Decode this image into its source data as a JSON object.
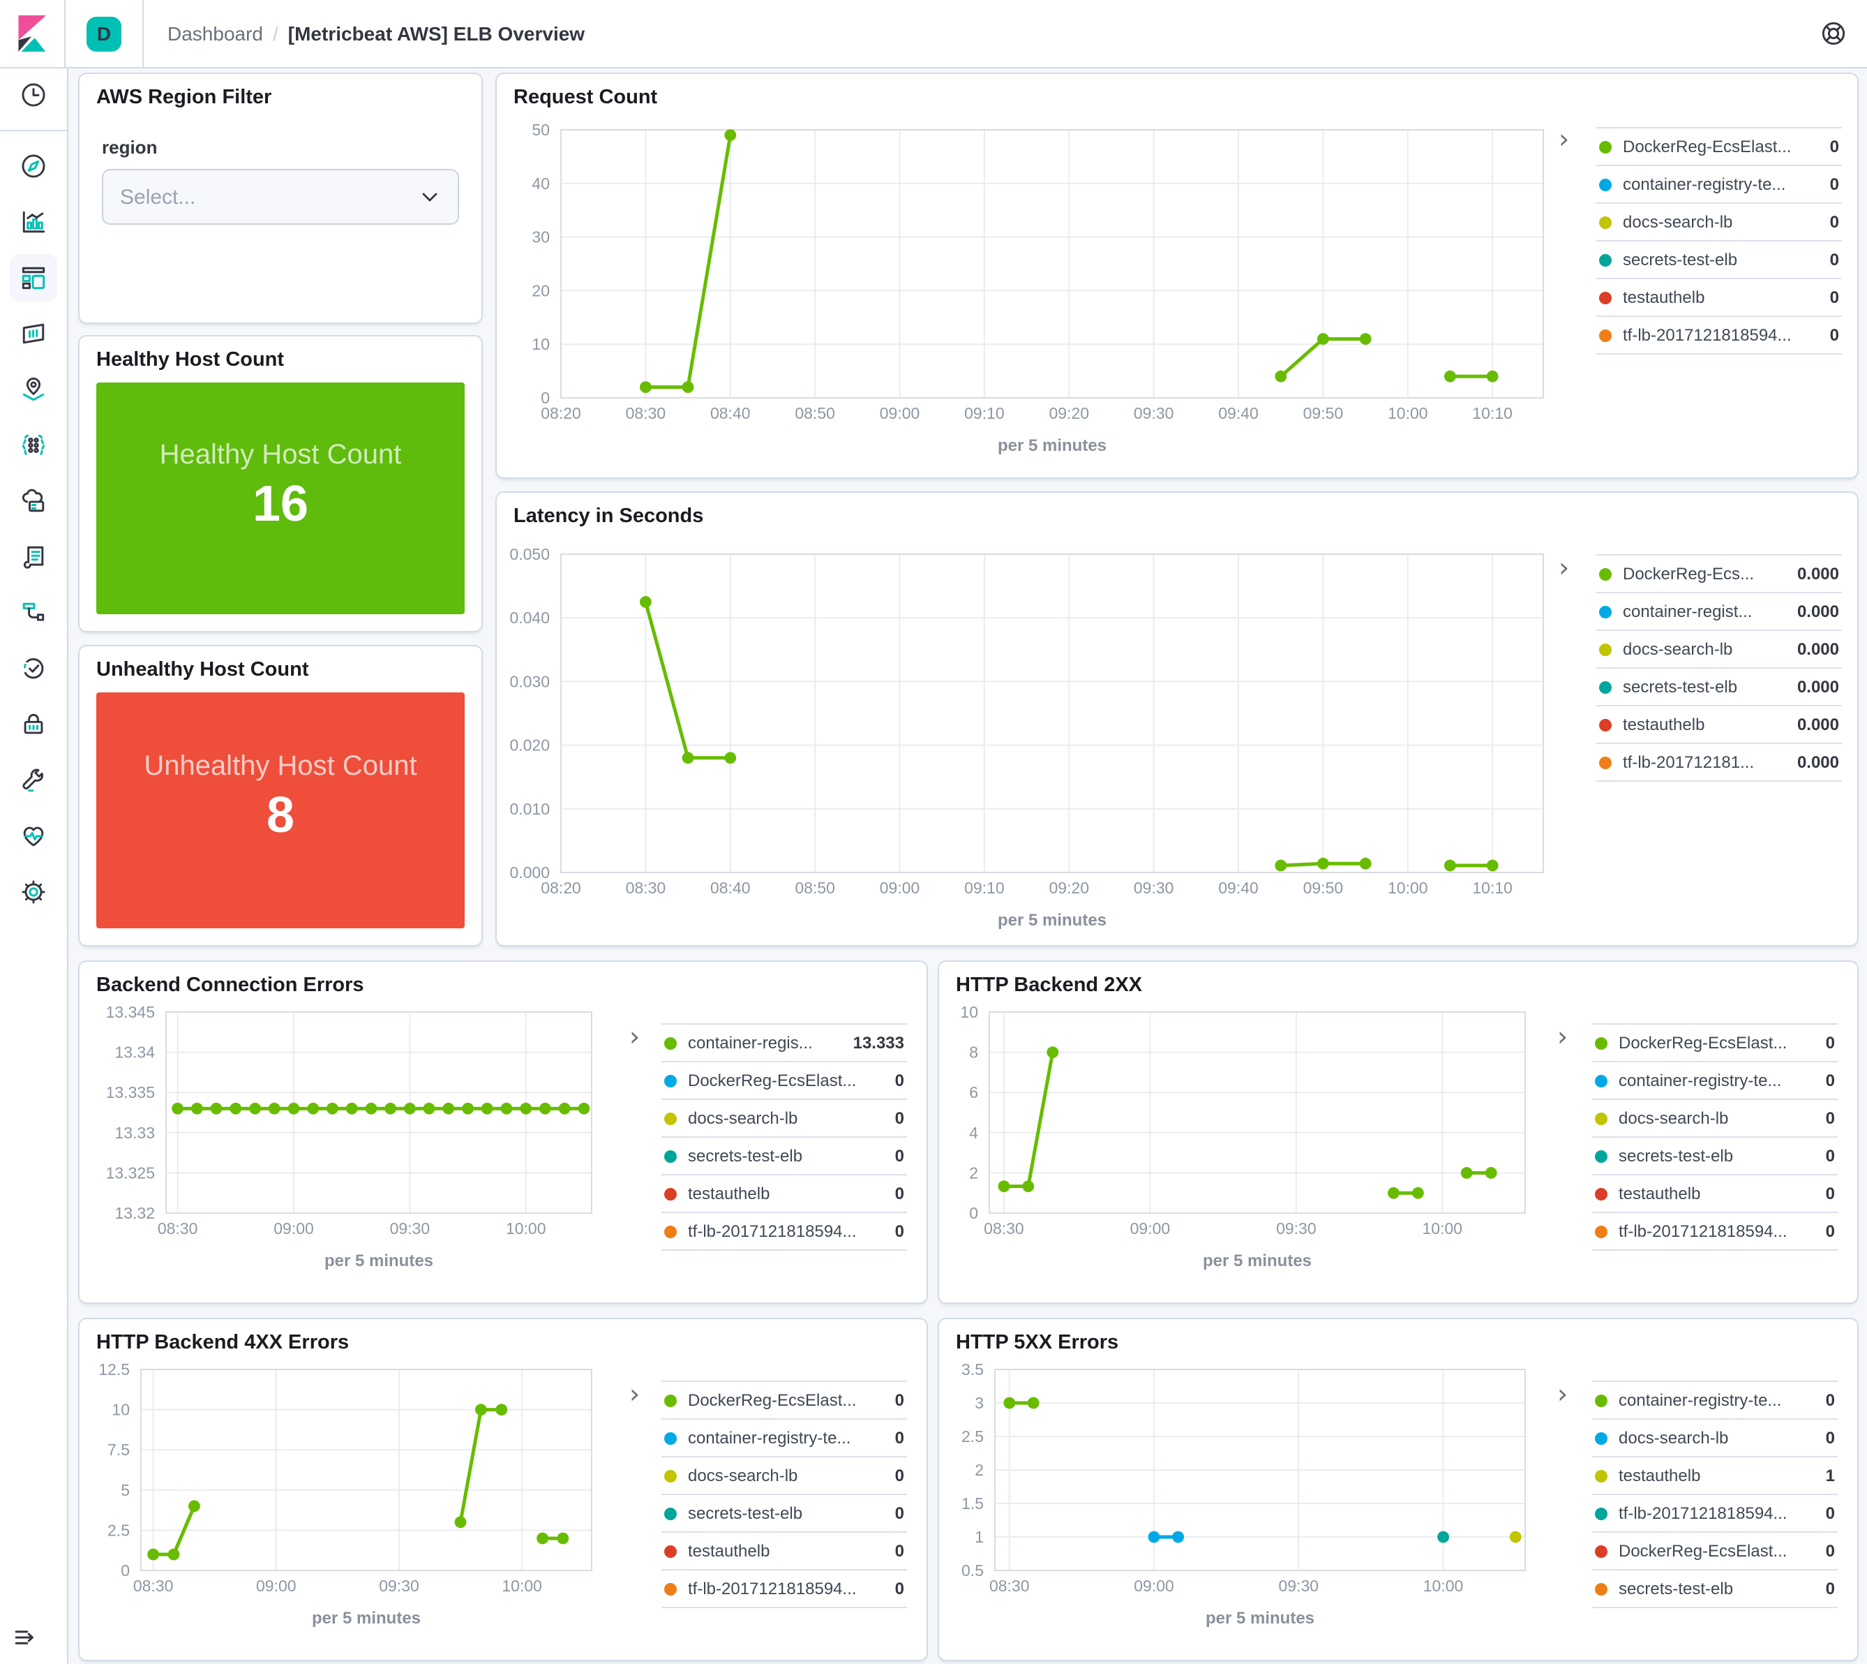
{
  "app": {
    "name": "Kibana",
    "space_badge": "D",
    "breadcrumb": {
      "section": "Dashboard",
      "separator": "/",
      "page": "[Metricbeat AWS] ELB Overview"
    }
  },
  "sidebar": {
    "icons": [
      "recent",
      "discover",
      "visualize",
      "dashboard",
      "canvas",
      "maps",
      "machine-learning",
      "infrastructure",
      "logs",
      "apm",
      "uptime",
      "siem",
      "dev-tools",
      "stack-monitoring",
      "management"
    ],
    "selected": "dashboard",
    "collapse_icon": "dock-navigation-icon",
    "help_icon": "help-life-ring-icon"
  },
  "filter_panel": {
    "title": "AWS Region Filter",
    "field_label": "region",
    "select_placeholder": "Select...",
    "chevron_icon": "chevron-down-icon"
  },
  "metrics": [
    {
      "title": "Healthy Host Count",
      "label": "Healthy Host Count",
      "value": "16",
      "color": "#5FBB0C"
    },
    {
      "title": "Unhealthy Host Count",
      "label": "Unhealthy Host Count",
      "value": "8",
      "color": "#EE4E3A"
    }
  ],
  "palette": {
    "green": "#68BC00",
    "blue": "#00A9E5",
    "olive": "#C1C400",
    "teal": "#00A69B",
    "red": "#DB3E26",
    "orange": "#F07E16"
  },
  "chart_data": [
    {
      "key": "request_count",
      "type": "line",
      "title": "Request Count",
      "xlabel": "per 5 minutes",
      "x_domain": [
        500,
        616
      ],
      "x_ticks": [
        {
          "t": 500,
          "label": "08:20"
        },
        {
          "t": 510,
          "label": "08:30"
        },
        {
          "t": 520,
          "label": "08:40"
        },
        {
          "t": 530,
          "label": "08:50"
        },
        {
          "t": 540,
          "label": "09:00"
        },
        {
          "t": 550,
          "label": "09:10"
        },
        {
          "t": 560,
          "label": "09:20"
        },
        {
          "t": 570,
          "label": "09:30"
        },
        {
          "t": 580,
          "label": "09:40"
        },
        {
          "t": 590,
          "label": "09:50"
        },
        {
          "t": 600,
          "label": "10:00"
        },
        {
          "t": 610,
          "label": "10:10"
        }
      ],
      "y_domain": [
        0,
        50
      ],
      "y_ticks": [
        {
          "v": 0,
          "label": "0"
        },
        {
          "v": 10,
          "label": "10"
        },
        {
          "v": 20,
          "label": "20"
        },
        {
          "v": 30,
          "label": "30"
        },
        {
          "v": 40,
          "label": "40"
        },
        {
          "v": 50,
          "label": "50"
        }
      ],
      "series": [
        {
          "name": "DockerReg-EcsElast...",
          "color": "green",
          "segments": [
            [
              [
                510,
                2
              ],
              [
                515,
                2
              ],
              [
                520,
                49
              ]
            ],
            [
              [
                585,
                4
              ],
              [
                590,
                11
              ],
              [
                595,
                11
              ]
            ],
            [
              [
                605,
                4
              ],
              [
                610,
                4
              ]
            ]
          ]
        }
      ],
      "legend": [
        {
          "label": "DockerReg-EcsElast...",
          "value": "0",
          "color": "green"
        },
        {
          "label": "container-registry-te...",
          "value": "0",
          "color": "blue"
        },
        {
          "label": "docs-search-lb",
          "value": "0",
          "color": "olive"
        },
        {
          "label": "secrets-test-elb",
          "value": "0",
          "color": "teal"
        },
        {
          "label": "testauthelb",
          "value": "0",
          "color": "red"
        },
        {
          "label": "tf-lb-2017121818594...",
          "value": "0",
          "color": "orange"
        }
      ]
    },
    {
      "key": "latency",
      "type": "line",
      "title": "Latency in Seconds",
      "xlabel": "per 5 minutes",
      "x_domain": [
        500,
        616
      ],
      "x_ticks": [
        {
          "t": 500,
          "label": "08:20"
        },
        {
          "t": 510,
          "label": "08:30"
        },
        {
          "t": 520,
          "label": "08:40"
        },
        {
          "t": 530,
          "label": "08:50"
        },
        {
          "t": 540,
          "label": "09:00"
        },
        {
          "t": 550,
          "label": "09:10"
        },
        {
          "t": 560,
          "label": "09:20"
        },
        {
          "t": 570,
          "label": "09:30"
        },
        {
          "t": 580,
          "label": "09:40"
        },
        {
          "t": 590,
          "label": "09:50"
        },
        {
          "t": 600,
          "label": "10:00"
        },
        {
          "t": 610,
          "label": "10:10"
        }
      ],
      "y_domain": [
        0,
        0.05
      ],
      "y_ticks": [
        {
          "v": 0,
          "label": "0.000"
        },
        {
          "v": 0.01,
          "label": "0.010"
        },
        {
          "v": 0.02,
          "label": "0.020"
        },
        {
          "v": 0.03,
          "label": "0.030"
        },
        {
          "v": 0.04,
          "label": "0.040"
        },
        {
          "v": 0.05,
          "label": "0.050"
        }
      ],
      "series": [
        {
          "name": "DockerReg-Ecs...",
          "color": "green",
          "segments": [
            [
              [
                510,
                0.0425
              ],
              [
                515,
                0.018
              ],
              [
                520,
                0.018
              ]
            ],
            [
              [
                585,
                0.0011
              ],
              [
                590,
                0.0014
              ],
              [
                595,
                0.0014
              ]
            ],
            [
              [
                605,
                0.0011
              ],
              [
                610,
                0.0011
              ]
            ]
          ]
        }
      ],
      "legend": [
        {
          "label": "DockerReg-Ecs...",
          "value": "0.000",
          "color": "green"
        },
        {
          "label": "container-regist...",
          "value": "0.000",
          "color": "blue"
        },
        {
          "label": "docs-search-lb",
          "value": "0.000",
          "color": "olive"
        },
        {
          "label": "secrets-test-elb",
          "value": "0.000",
          "color": "teal"
        },
        {
          "label": "testauthelb",
          "value": "0.000",
          "color": "red"
        },
        {
          "label": "tf-lb-201712181...",
          "value": "0.000",
          "color": "orange"
        }
      ]
    },
    {
      "key": "backend_connection_errors",
      "type": "line",
      "title": "Backend Connection Errors",
      "xlabel": "per 5 minutes",
      "x_domain": [
        507,
        617
      ],
      "x_ticks": [
        {
          "t": 510,
          "label": "08:30"
        },
        {
          "t": 540,
          "label": "09:00"
        },
        {
          "t": 570,
          "label": "09:30"
        },
        {
          "t": 600,
          "label": "10:00"
        }
      ],
      "y_domain": [
        13.32,
        13.345
      ],
      "y_ticks": [
        {
          "v": 13.32,
          "label": "13.32"
        },
        {
          "v": 13.325,
          "label": "13.325"
        },
        {
          "v": 13.33,
          "label": "13.33"
        },
        {
          "v": 13.335,
          "label": "13.335"
        },
        {
          "v": 13.34,
          "label": "13.34"
        },
        {
          "v": 13.345,
          "label": "13.345"
        }
      ],
      "series": [
        {
          "name": "container-regis...",
          "color": "green",
          "segments": [
            [
              [
                510,
                13.333
              ],
              [
                515,
                13.333
              ],
              [
                520,
                13.333
              ],
              [
                525,
                13.333
              ],
              [
                530,
                13.333
              ],
              [
                535,
                13.333
              ],
              [
                540,
                13.333
              ],
              [
                545,
                13.333
              ],
              [
                550,
                13.333
              ],
              [
                555,
                13.333
              ],
              [
                560,
                13.333
              ],
              [
                565,
                13.333
              ],
              [
                570,
                13.333
              ],
              [
                575,
                13.333
              ],
              [
                580,
                13.333
              ],
              [
                585,
                13.333
              ],
              [
                590,
                13.333
              ],
              [
                595,
                13.333
              ],
              [
                600,
                13.333
              ],
              [
                605,
                13.333
              ],
              [
                610,
                13.333
              ],
              [
                615,
                13.333
              ]
            ]
          ]
        }
      ],
      "legend": [
        {
          "label": "container-regis...",
          "value": "13.333",
          "color": "green"
        },
        {
          "label": "DockerReg-EcsElast...",
          "value": "0",
          "color": "blue"
        },
        {
          "label": "docs-search-lb",
          "value": "0",
          "color": "olive"
        },
        {
          "label": "secrets-test-elb",
          "value": "0",
          "color": "teal"
        },
        {
          "label": "testauthelb",
          "value": "0",
          "color": "red"
        },
        {
          "label": "tf-lb-2017121818594...",
          "value": "0",
          "color": "orange"
        }
      ]
    },
    {
      "key": "http_backend_2xx",
      "type": "line",
      "title": "HTTP Backend 2XX",
      "xlabel": "per 5 minutes",
      "x_domain": [
        507,
        617
      ],
      "x_ticks": [
        {
          "t": 510,
          "label": "08:30"
        },
        {
          "t": 540,
          "label": "09:00"
        },
        {
          "t": 570,
          "label": "09:30"
        },
        {
          "t": 600,
          "label": "10:00"
        }
      ],
      "y_domain": [
        0,
        10
      ],
      "y_ticks": [
        {
          "v": 0,
          "label": "0"
        },
        {
          "v": 2,
          "label": "2"
        },
        {
          "v": 4,
          "label": "4"
        },
        {
          "v": 6,
          "label": "6"
        },
        {
          "v": 8,
          "label": "8"
        },
        {
          "v": 10,
          "label": "10"
        }
      ],
      "series": [
        {
          "name": "DockerReg-EcsElast...",
          "color": "green",
          "segments": [
            [
              [
                510,
                1.33
              ],
              [
                515,
                1.33
              ],
              [
                520,
                8
              ]
            ],
            [
              [
                590,
                1
              ],
              [
                595,
                1
              ]
            ],
            [
              [
                605,
                2
              ],
              [
                610,
                2
              ]
            ]
          ]
        }
      ],
      "legend": [
        {
          "label": "DockerReg-EcsElast...",
          "value": "0",
          "color": "green"
        },
        {
          "label": "container-registry-te...",
          "value": "0",
          "color": "blue"
        },
        {
          "label": "docs-search-lb",
          "value": "0",
          "color": "olive"
        },
        {
          "label": "secrets-test-elb",
          "value": "0",
          "color": "teal"
        },
        {
          "label": "testauthelb",
          "value": "0",
          "color": "red"
        },
        {
          "label": "tf-lb-2017121818594...",
          "value": "0",
          "color": "orange"
        }
      ]
    },
    {
      "key": "http_backend_4xx",
      "type": "line",
      "title": "HTTP Backend 4XX Errors",
      "xlabel": "per 5 minutes",
      "x_domain": [
        507,
        617
      ],
      "x_ticks": [
        {
          "t": 510,
          "label": "08:30"
        },
        {
          "t": 540,
          "label": "09:00"
        },
        {
          "t": 570,
          "label": "09:30"
        },
        {
          "t": 600,
          "label": "10:00"
        }
      ],
      "y_domain": [
        0,
        12.5
      ],
      "y_ticks": [
        {
          "v": 0,
          "label": "0"
        },
        {
          "v": 2.5,
          "label": "2.5"
        },
        {
          "v": 5,
          "label": "5"
        },
        {
          "v": 7.5,
          "label": "7.5"
        },
        {
          "v": 10,
          "label": "10"
        },
        {
          "v": 12.5,
          "label": "12.5"
        }
      ],
      "series": [
        {
          "name": "DockerReg-EcsElast...",
          "color": "green",
          "segments": [
            [
              [
                510,
                1
              ],
              [
                515,
                1
              ],
              [
                520,
                4
              ]
            ],
            [
              [
                585,
                3
              ],
              [
                590,
                10
              ],
              [
                595,
                10
              ]
            ],
            [
              [
                605,
                2
              ],
              [
                610,
                2
              ]
            ]
          ]
        }
      ],
      "legend": [
        {
          "label": "DockerReg-EcsElast...",
          "value": "0",
          "color": "green"
        },
        {
          "label": "container-registry-te...",
          "value": "0",
          "color": "blue"
        },
        {
          "label": "docs-search-lb",
          "value": "0",
          "color": "olive"
        },
        {
          "label": "secrets-test-elb",
          "value": "0",
          "color": "teal"
        },
        {
          "label": "testauthelb",
          "value": "0",
          "color": "red"
        },
        {
          "label": "tf-lb-2017121818594...",
          "value": "0",
          "color": "orange"
        }
      ]
    },
    {
      "key": "http_5xx",
      "type": "line",
      "title": "HTTP 5XX Errors",
      "xlabel": "per 5 minutes",
      "x_domain": [
        507,
        617
      ],
      "x_ticks": [
        {
          "t": 510,
          "label": "08:30"
        },
        {
          "t": 540,
          "label": "09:00"
        },
        {
          "t": 570,
          "label": "09:30"
        },
        {
          "t": 600,
          "label": "10:00"
        }
      ],
      "y_domain": [
        0.5,
        3.5
      ],
      "y_ticks": [
        {
          "v": 0.5,
          "label": "0.5"
        },
        {
          "v": 1,
          "label": "1"
        },
        {
          "v": 1.5,
          "label": "1.5"
        },
        {
          "v": 2,
          "label": "2"
        },
        {
          "v": 2.5,
          "label": "2.5"
        },
        {
          "v": 3,
          "label": "3"
        },
        {
          "v": 3.5,
          "label": "3.5"
        }
      ],
      "series": [
        {
          "name": "container-registry-te...",
          "color": "green",
          "segments": [
            [
              [
                510,
                3
              ],
              [
                515,
                3
              ]
            ]
          ]
        },
        {
          "name": "docs-search-lb",
          "color": "blue",
          "segments": [
            [
              [
                540,
                1
              ],
              [
                545,
                1
              ]
            ]
          ]
        },
        {
          "name": "tf-lb-2017121818594...",
          "color": "teal",
          "segments": [
            [
              [
                600,
                1
              ]
            ]
          ]
        },
        {
          "name": "testauthelb",
          "color": "olive",
          "segments": [
            [
              [
                615,
                1
              ]
            ]
          ]
        }
      ],
      "legend": [
        {
          "label": "container-registry-te...",
          "value": "0",
          "color": "green"
        },
        {
          "label": "docs-search-lb",
          "value": "0",
          "color": "blue"
        },
        {
          "label": "testauthelb",
          "value": "1",
          "color": "olive"
        },
        {
          "label": "tf-lb-2017121818594...",
          "value": "0",
          "color": "teal"
        },
        {
          "label": "DockerReg-EcsElast...",
          "value": "0",
          "color": "red"
        },
        {
          "label": "secrets-test-elb",
          "value": "0",
          "color": "orange"
        }
      ]
    }
  ]
}
